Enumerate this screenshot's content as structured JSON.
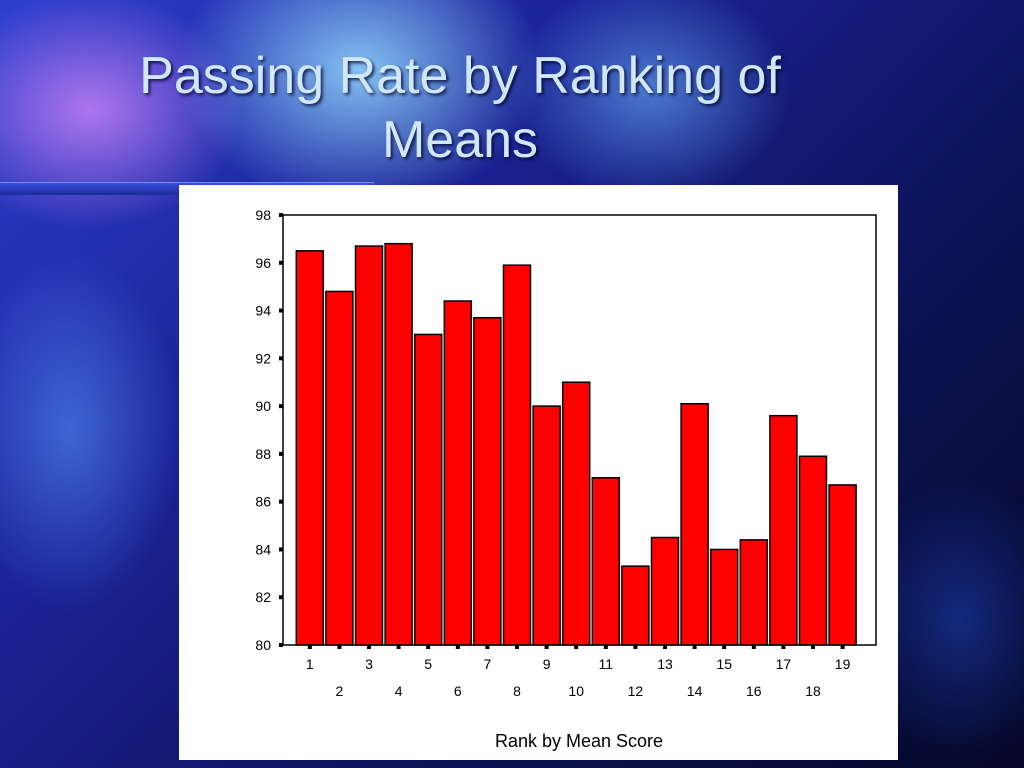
{
  "slide": {
    "title_line1": "Passing Rate by Ranking of",
    "title_line2": "Means"
  },
  "colors": {
    "bar_fill": "#ff0000",
    "bar_stroke": "#000000"
  },
  "chart_data": {
    "type": "bar",
    "title": "",
    "xlabel": "Rank by Mean Score",
    "ylabel": "",
    "ylim": [
      80,
      98
    ],
    "yticks": [
      80,
      82,
      84,
      86,
      88,
      90,
      92,
      94,
      96,
      98
    ],
    "categories": [
      "1",
      "2",
      "3",
      "4",
      "5",
      "6",
      "7",
      "8",
      "9",
      "10",
      "11",
      "12",
      "13",
      "14",
      "15",
      "16",
      "17",
      "18",
      "19"
    ],
    "values": [
      96.5,
      94.8,
      96.7,
      96.8,
      93.0,
      94.4,
      93.7,
      95.9,
      90.0,
      91.0,
      87.0,
      83.3,
      84.5,
      90.1,
      84.0,
      84.4,
      89.6,
      87.9,
      86.7
    ],
    "grid": false,
    "legend": "none"
  }
}
